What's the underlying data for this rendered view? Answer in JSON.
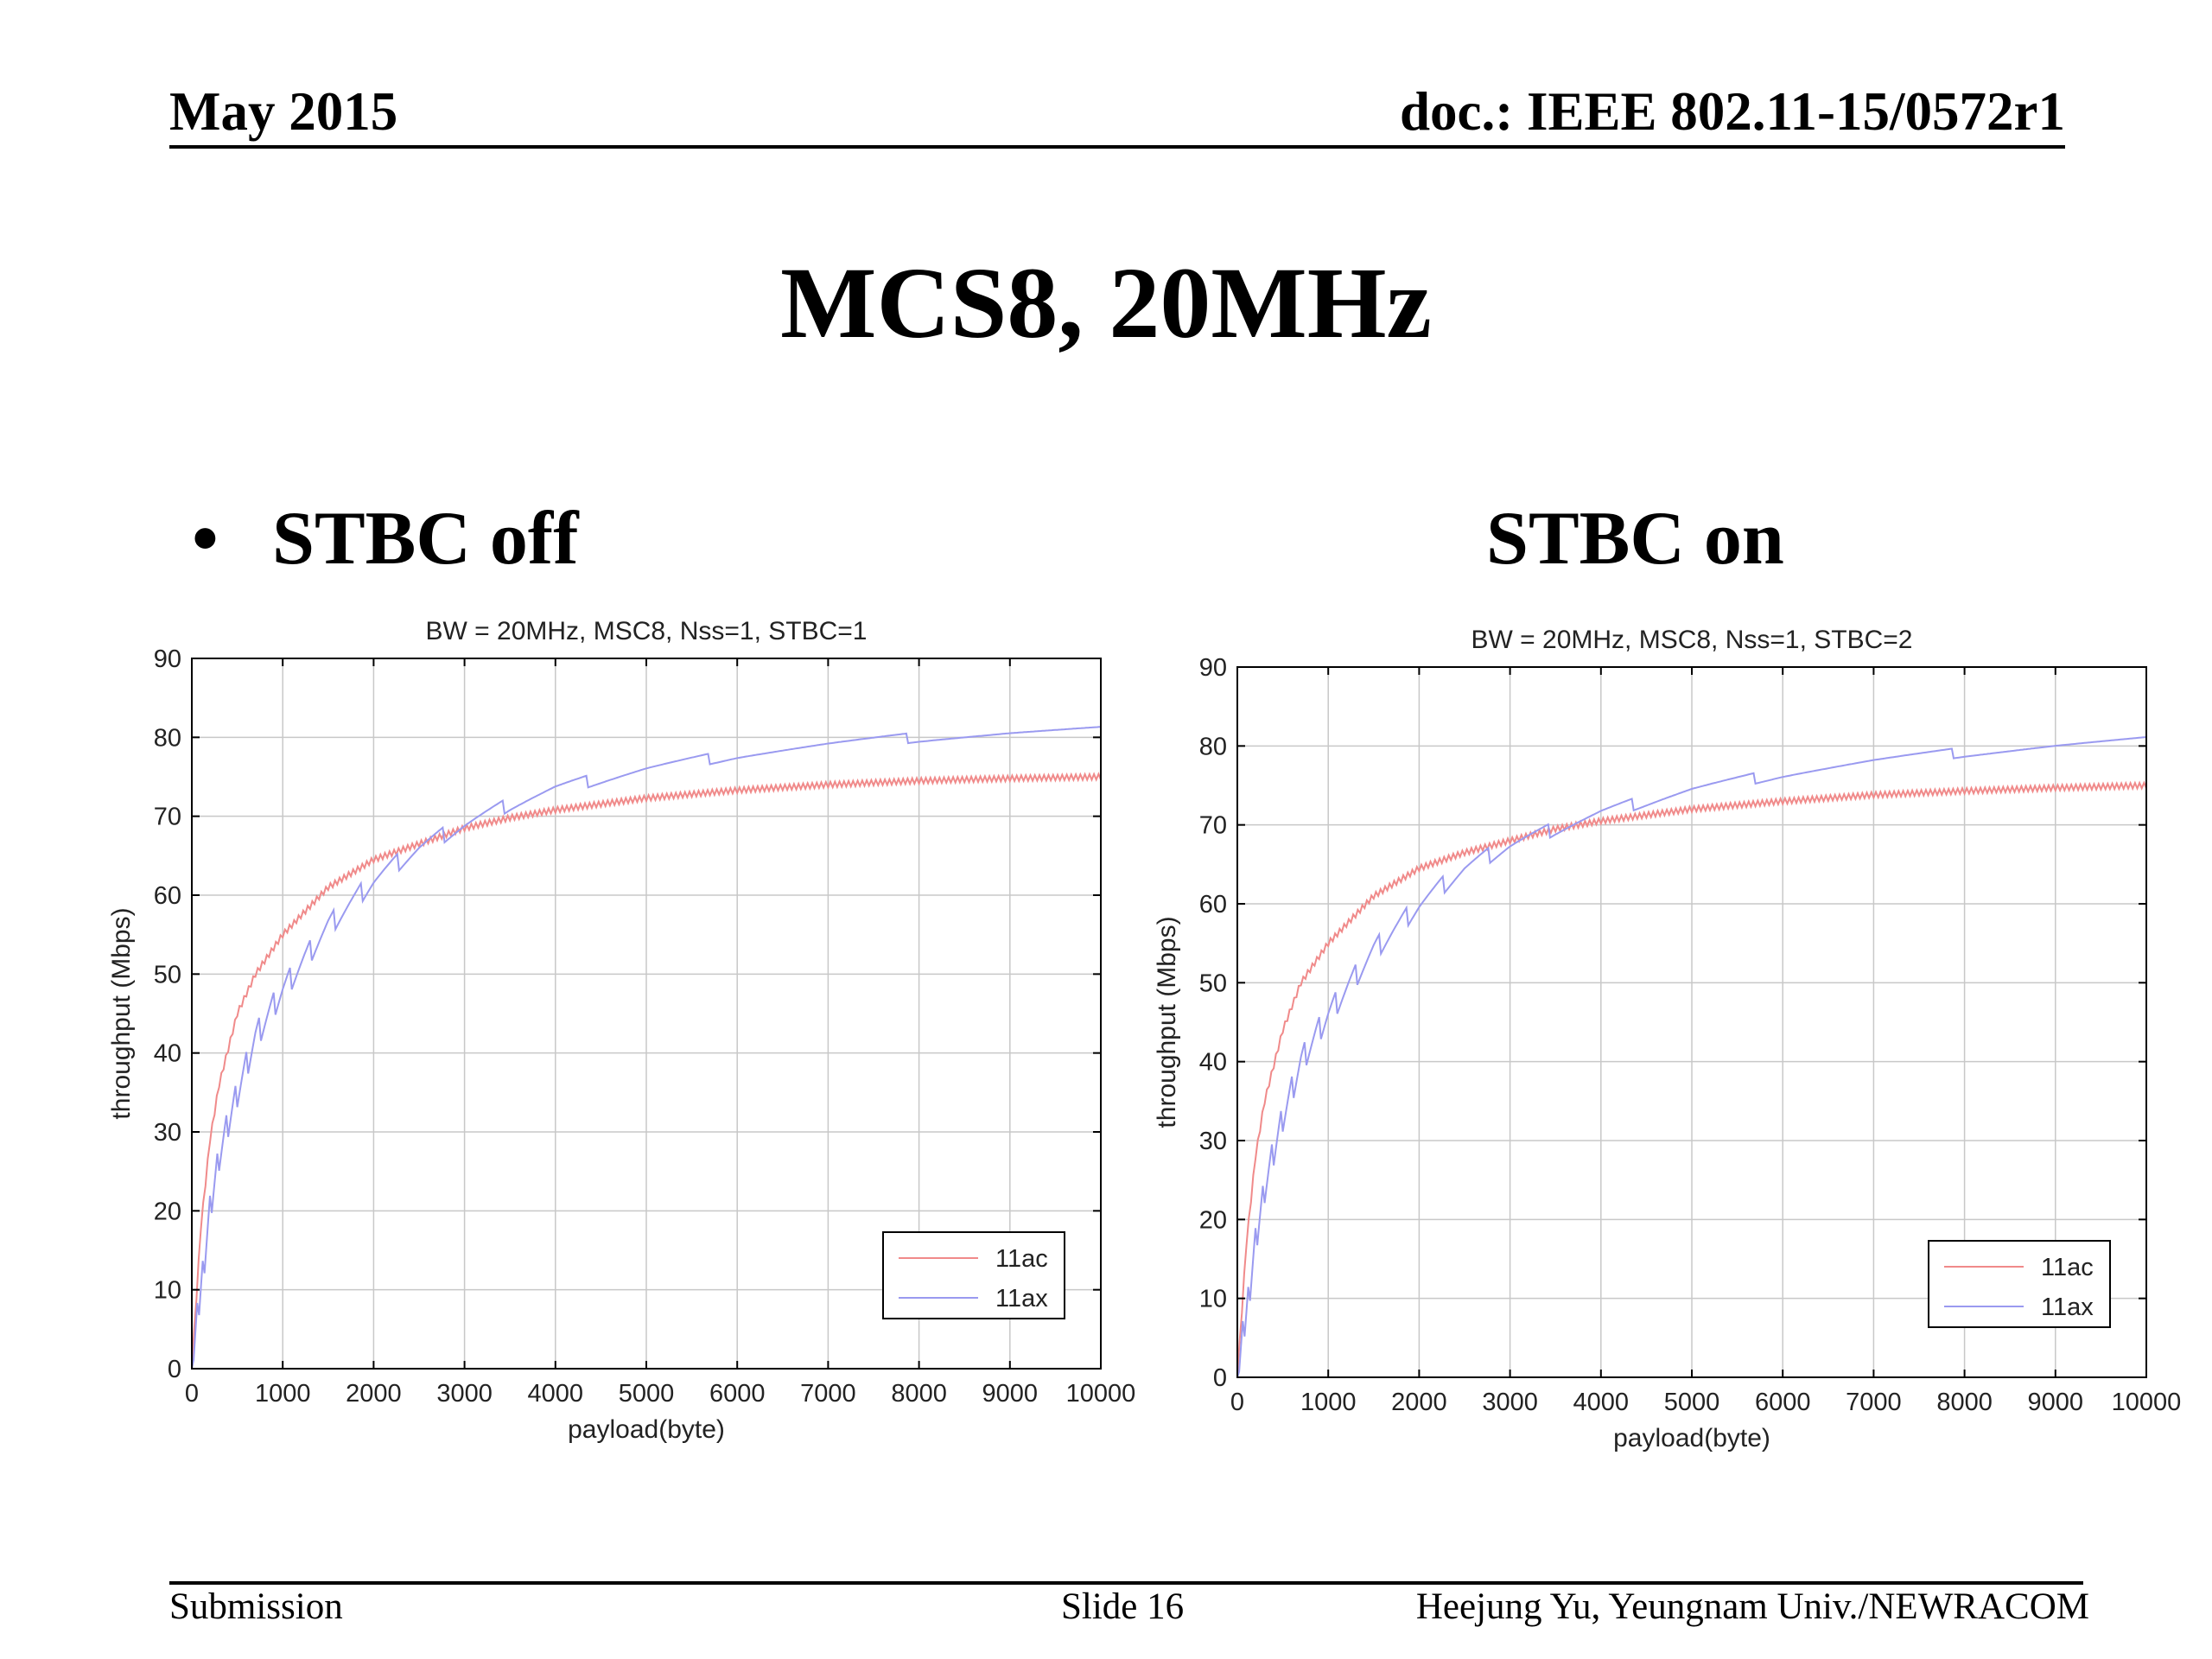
{
  "header": {
    "date": "May 2015",
    "doc": "doc.: IEEE 802.11-15/0572r1"
  },
  "slide_title": "MCS8, 20MHz",
  "bullet": "•",
  "subtitles": {
    "left": "STBC off",
    "right": "STBC on"
  },
  "footer": {
    "left": "Submission",
    "center": "Slide 16",
    "right": "Heejung Yu, Yeungnam Univ./NEWRACOM"
  },
  "colors": {
    "ac": "#f08a8a",
    "ax": "#9a9af0",
    "grid": "#c8c8c8",
    "axis": "#000000"
  },
  "chart_data": [
    {
      "type": "line",
      "title": "BW = 20MHz, MSC8, Nss=1, STBC=1",
      "xlabel": "payload(byte)",
      "ylabel": "throughput (Mbps)",
      "xlim": [
        0,
        10000
      ],
      "ylim": [
        0,
        90
      ],
      "xticks": [
        0,
        1000,
        2000,
        3000,
        4000,
        5000,
        6000,
        7000,
        8000,
        9000,
        10000
      ],
      "yticks": [
        0,
        10,
        20,
        30,
        40,
        50,
        60,
        70,
        80,
        90
      ],
      "grid": true,
      "legend": "bottom-right",
      "series": [
        {
          "name": "11ac",
          "color": "#f08a8a",
          "x": [
            0,
            100,
            200,
            300,
            500,
            700,
            1000,
            1500,
            2000,
            2500,
            3000,
            3500,
            4000,
            5000,
            6000,
            7000,
            8000,
            9000,
            10000
          ],
          "y": [
            0,
            18,
            29,
            36,
            45,
            50,
            55,
            61,
            64.5,
            66.5,
            68.5,
            69.8,
            70.8,
            72.3,
            73.3,
            74,
            74.5,
            74.8,
            75
          ]
        },
        {
          "name": "11ax",
          "color": "#9a9af0",
          "x": [
            0,
            100,
            200,
            300,
            500,
            700,
            1000,
            1500,
            2000,
            2500,
            3000,
            3500,
            4000,
            5000,
            6000,
            7000,
            8000,
            9000,
            10000
          ],
          "y": [
            0,
            10,
            20,
            27,
            35,
            42,
            48,
            56,
            62,
            66,
            69,
            71.5,
            73.5,
            76,
            77.8,
            79,
            80,
            80.7,
            81.2
          ]
        }
      ]
    },
    {
      "type": "line",
      "title": "BW = 20MHz, MSC8, Nss=1, STBC=2",
      "xlabel": "payload(byte)",
      "ylabel": "throughput (Mbps)",
      "xlim": [
        0,
        10000
      ],
      "ylim": [
        0,
        90
      ],
      "xticks": [
        0,
        1000,
        2000,
        3000,
        4000,
        5000,
        6000,
        7000,
        8000,
        9000,
        10000
      ],
      "yticks": [
        0,
        10,
        20,
        30,
        40,
        50,
        60,
        70,
        80,
        90
      ],
      "grid": true,
      "legend": "bottom-right",
      "series": [
        {
          "name": "11ac",
          "color": "#f08a8a",
          "x": [
            0,
            100,
            200,
            300,
            500,
            700,
            1000,
            1500,
            2000,
            2500,
            3000,
            3500,
            4000,
            5000,
            6000,
            7000,
            8000,
            9000,
            10000
          ],
          "y": [
            0,
            17,
            28,
            35,
            44,
            50,
            55,
            61,
            64.5,
            66.5,
            68,
            69.5,
            70.5,
            72,
            73,
            73.8,
            74.3,
            74.7,
            75
          ]
        },
        {
          "name": "11ax",
          "color": "#9a9af0",
          "x": [
            0,
            100,
            200,
            300,
            500,
            700,
            1000,
            1500,
            2000,
            2500,
            3000,
            3500,
            4000,
            5000,
            6000,
            7000,
            8000,
            9000,
            10000
          ],
          "y": [
            0,
            8,
            17,
            24,
            33,
            40,
            46,
            54,
            60,
            64.5,
            67.5,
            69.5,
            71.5,
            74.5,
            76.5,
            78,
            79.2,
            80.2,
            81
          ]
        }
      ]
    }
  ]
}
